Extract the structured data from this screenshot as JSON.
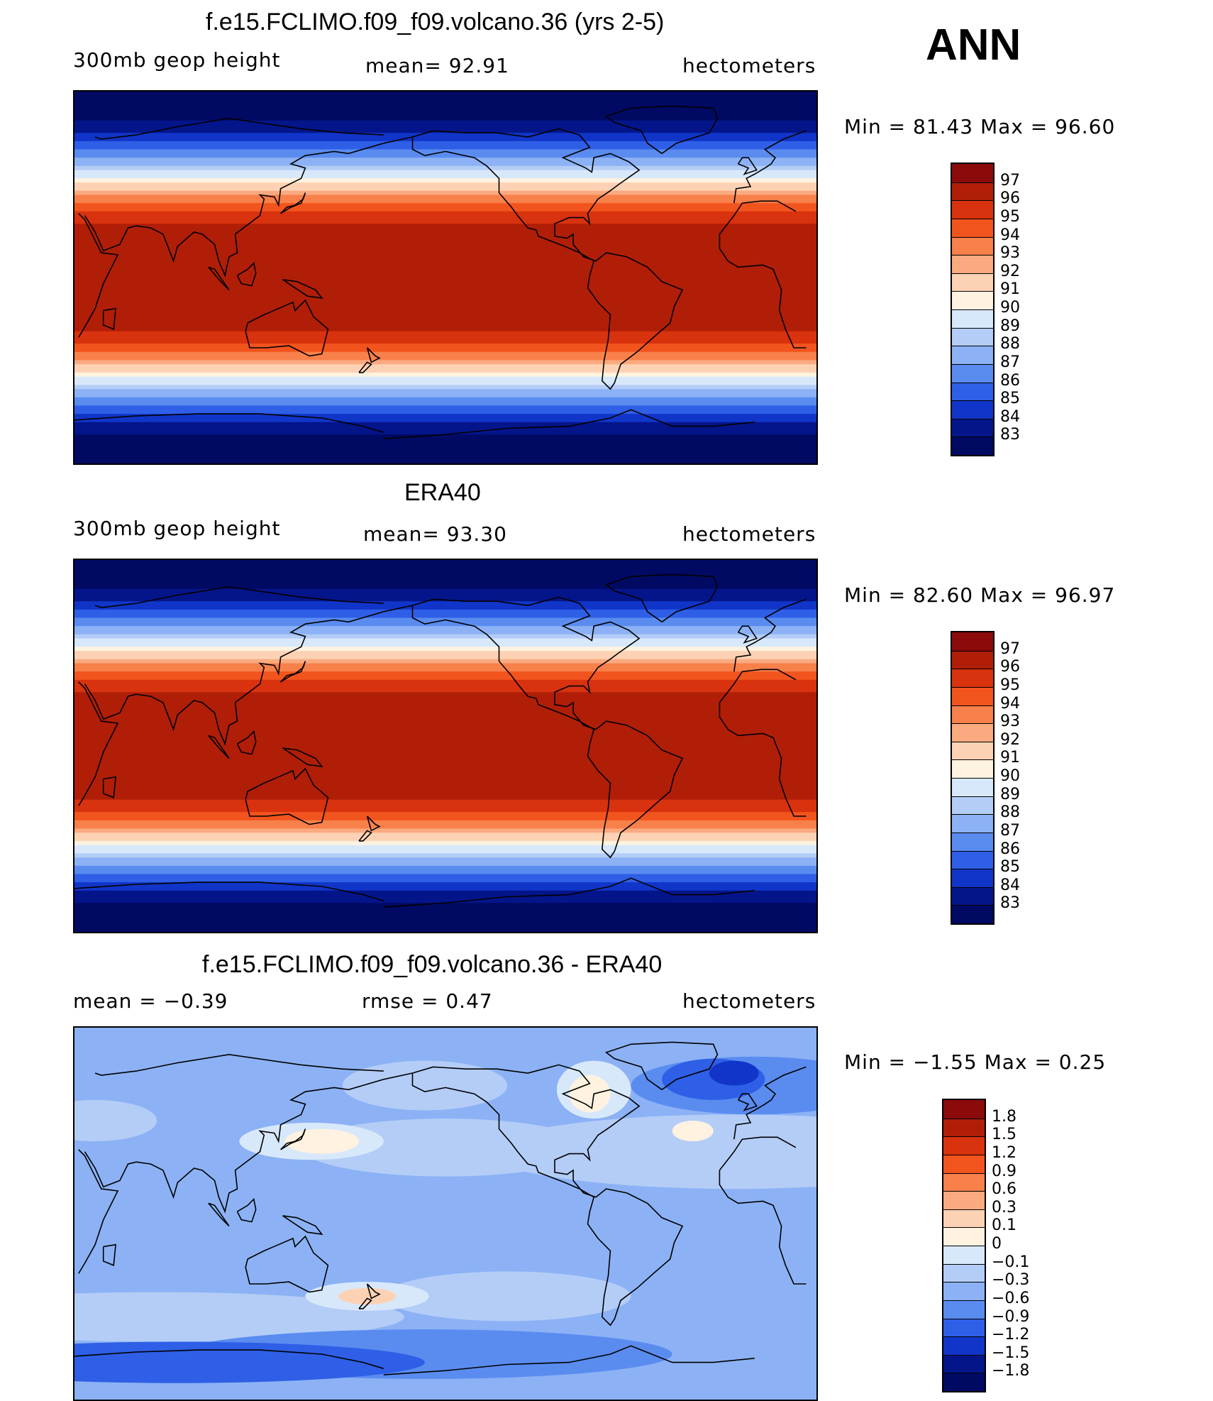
{
  "season": "ANN",
  "panels": [
    {
      "title": "f.e15.FCLIMO.f09_f09.volcano.36 (yrs 2-5)",
      "left_label": "300mb  geop  height",
      "center_label": "mean=   92.91",
      "right_label": "hectometers",
      "minmax_label": "Min  =    81.43  Max  =    96.60",
      "map_type": "absolute",
      "colorbar": {
        "labels": [
          "97",
          "96",
          "95",
          "94",
          "93",
          "92",
          "91",
          "90",
          "89",
          "88",
          "87",
          "86",
          "85",
          "84",
          "83"
        ],
        "colors": [
          "#8b0a0a",
          "#b01e08",
          "#d8320e",
          "#f2541e",
          "#f8804a",
          "#fbaa80",
          "#fdd2b4",
          "#fff2e0",
          "#d8e8fb",
          "#b4cdf7",
          "#8cb2f5",
          "#5a8cf0",
          "#2e5fe6",
          "#1035c8",
          "#04158a",
          "#010a63"
        ]
      }
    },
    {
      "title": "ERA40",
      "left_label": "300mb  geop  height",
      "center_label": "mean=   93.30",
      "right_label": "hectometers",
      "minmax_label": "Min  =    82.60  Max  =    96.97",
      "map_type": "absolute",
      "colorbar": {
        "labels": [
          "97",
          "96",
          "95",
          "94",
          "93",
          "92",
          "91",
          "90",
          "89",
          "88",
          "87",
          "86",
          "85",
          "84",
          "83"
        ],
        "colors": [
          "#8b0a0a",
          "#b01e08",
          "#d8320e",
          "#f2541e",
          "#f8804a",
          "#fbaa80",
          "#fdd2b4",
          "#fff2e0",
          "#d8e8fb",
          "#b4cdf7",
          "#8cb2f5",
          "#5a8cf0",
          "#2e5fe6",
          "#1035c8",
          "#04158a",
          "#010a63"
        ]
      }
    },
    {
      "title": "f.e15.FCLIMO.f09_f09.volcano.36 - ERA40",
      "left_label": "mean  =    −0.39",
      "center_label": "rmse  =     0.47",
      "right_label": "hectometers",
      "minmax_label": "Min  =    −1.55  Max  =      0.25",
      "map_type": "difference",
      "colorbar": {
        "labels": [
          "1.8",
          "1.5",
          "1.2",
          "0.9",
          "0.6",
          "0.3",
          "0.1",
          "0",
          "−0.1",
          "−0.3",
          "−0.6",
          "−0.9",
          "−1.2",
          "−1.5",
          "−1.8"
        ],
        "colors": [
          "#8b0a0a",
          "#b01e08",
          "#d8320e",
          "#f2541e",
          "#f8804a",
          "#fbaa80",
          "#fdd2b4",
          "#fff2e0",
          "#d8e8fb",
          "#b4cdf7",
          "#8cb2f5",
          "#5a8cf0",
          "#2e5fe6",
          "#1035c8",
          "#04158a",
          "#010a63"
        ]
      }
    }
  ]
}
